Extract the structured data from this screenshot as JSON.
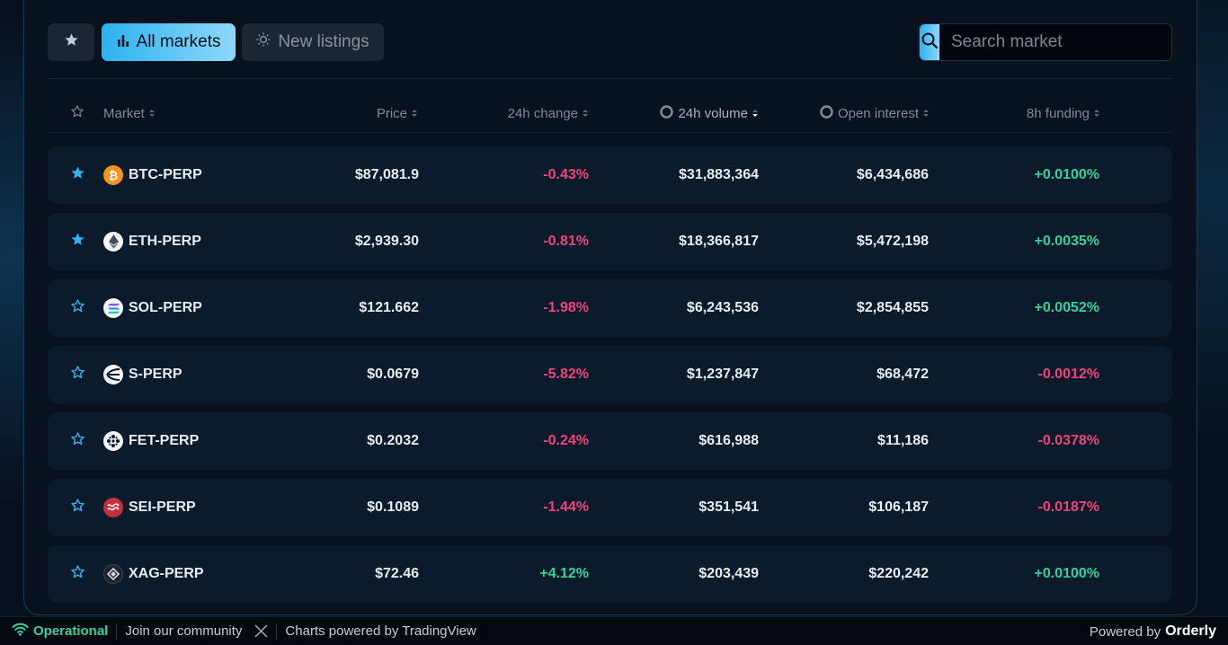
{
  "toolbar": {
    "all_markets_label": "All markets",
    "new_listings_label": "New listings",
    "search_placeholder": "Search market"
  },
  "columns": {
    "market": "Market",
    "price": "Price",
    "change": "24h change",
    "volume": "24h volume",
    "open_interest": "Open interest",
    "funding": "8h funding"
  },
  "rows": [
    {
      "market": "BTC-PERP",
      "price": "$87,081.9",
      "change": "-0.43%",
      "volume": "$31,883,364",
      "oi": "$6,434,686",
      "funding": "+0.0100%",
      "favorite": true,
      "icon": "bitcoin-icon"
    },
    {
      "market": "ETH-PERP",
      "price": "$2,939.30",
      "change": "-0.81%",
      "volume": "$18,366,817",
      "oi": "$5,472,198",
      "funding": "+0.0035%",
      "favorite": true,
      "icon": "ethereum-icon"
    },
    {
      "market": "SOL-PERP",
      "price": "$121.662",
      "change": "-1.98%",
      "volume": "$6,243,536",
      "oi": "$2,854,855",
      "funding": "+0.0052%",
      "favorite": false,
      "icon": "solana-icon"
    },
    {
      "market": "S-PERP",
      "price": "$0.0679",
      "change": "-5.82%",
      "volume": "$1,237,847",
      "oi": "$68,472",
      "funding": "-0.0012%",
      "favorite": false,
      "icon": "sonic-icon"
    },
    {
      "market": "FET-PERP",
      "price": "$0.2032",
      "change": "-0.24%",
      "volume": "$616,988",
      "oi": "$11,186",
      "funding": "-0.0378%",
      "favorite": false,
      "icon": "fetch-icon"
    },
    {
      "market": "SEI-PERP",
      "price": "$0.1089",
      "change": "-1.44%",
      "volume": "$351,541",
      "oi": "$106,187",
      "funding": "-0.0187%",
      "favorite": false,
      "icon": "sei-icon"
    },
    {
      "market": "XAG-PERP",
      "price": "$72.46",
      "change": "+4.12%",
      "volume": "$203,439",
      "oi": "$220,242",
      "funding": "+0.0100%",
      "favorite": false,
      "icon": "silver-icon"
    }
  ],
  "footer": {
    "status": "Operational",
    "community": "Join our community",
    "charts": "Charts powered by TradingView",
    "powered_by": "Powered by",
    "brand": "Orderly"
  },
  "colors": {
    "accent": "#2cb3f0",
    "negative": "#f0437c",
    "positive": "#2dd39a",
    "operational": "#2dd39a"
  }
}
